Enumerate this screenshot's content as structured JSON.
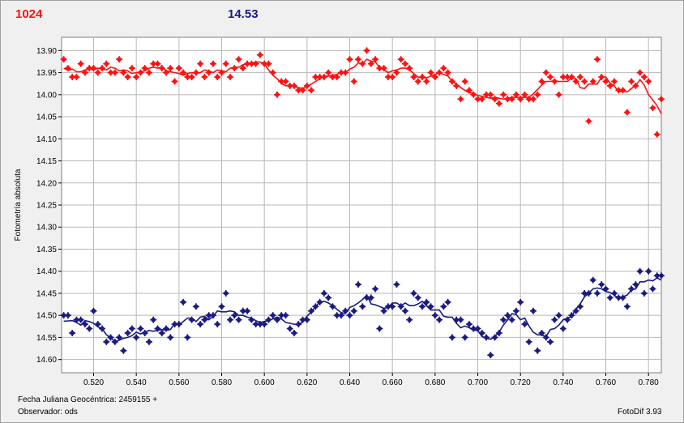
{
  "header": {
    "left_value": "1024",
    "right_value": "14.53"
  },
  "footer": {
    "jd_label": "Fecha Juliana Geocéntrica: 2459155 +",
    "observer_label": "Observador: ods",
    "app_label": "FotoDif 3.93"
  },
  "colors": {
    "series_red": "#ff1010",
    "series_blue": "#1a1a80",
    "plot_bg": "#ffffff",
    "grid": "#b8b8b8"
  },
  "chart_data": {
    "type": "scatter",
    "ylabel": "Fotometría absoluta",
    "xlim": [
      0.505,
      0.786
    ],
    "ylim": [
      13.87,
      14.63
    ],
    "y_inverted": true,
    "grid": true,
    "x_ticks": [
      "0.520",
      "0.540",
      "0.560",
      "0.580",
      "0.600",
      "0.620",
      "0.640",
      "0.660",
      "0.680",
      "0.700",
      "0.720",
      "0.740",
      "0.760",
      "0.780"
    ],
    "y_ticks": [
      "13.90",
      "13.95",
      "14.00",
      "14.05",
      "14.10",
      "14.15",
      "14.20",
      "14.25",
      "14.30",
      "14.35",
      "14.40",
      "14.45",
      "14.50",
      "14.55",
      "14.60"
    ],
    "series": [
      {
        "color": "#ff1010",
        "points": [
          [
            0.506,
            13.92
          ],
          [
            0.508,
            13.94
          ],
          [
            0.51,
            13.96
          ],
          [
            0.512,
            13.96
          ],
          [
            0.514,
            13.93
          ],
          [
            0.516,
            13.95
          ],
          [
            0.518,
            13.94
          ],
          [
            0.52,
            13.94
          ],
          [
            0.522,
            13.95
          ],
          [
            0.524,
            13.94
          ],
          [
            0.526,
            13.93
          ],
          [
            0.528,
            13.95
          ],
          [
            0.53,
            13.95
          ],
          [
            0.532,
            13.92
          ],
          [
            0.534,
            13.95
          ],
          [
            0.536,
            13.96
          ],
          [
            0.538,
            13.94
          ],
          [
            0.54,
            13.96
          ],
          [
            0.542,
            13.95
          ],
          [
            0.544,
            13.94
          ],
          [
            0.546,
            13.95
          ],
          [
            0.548,
            13.93
          ],
          [
            0.55,
            13.93
          ],
          [
            0.552,
            13.94
          ],
          [
            0.554,
            13.95
          ],
          [
            0.556,
            13.94
          ],
          [
            0.558,
            13.97
          ],
          [
            0.56,
            13.94
          ],
          [
            0.562,
            13.95
          ],
          [
            0.564,
            13.96
          ],
          [
            0.566,
            13.96
          ],
          [
            0.568,
            13.95
          ],
          [
            0.57,
            13.93
          ],
          [
            0.572,
            13.96
          ],
          [
            0.574,
            13.95
          ],
          [
            0.576,
            13.93
          ],
          [
            0.578,
            13.96
          ],
          [
            0.58,
            13.95
          ],
          [
            0.582,
            13.93
          ],
          [
            0.584,
            13.96
          ],
          [
            0.586,
            13.94
          ],
          [
            0.588,
            13.92
          ],
          [
            0.59,
            13.94
          ],
          [
            0.592,
            13.93
          ],
          [
            0.594,
            13.93
          ],
          [
            0.596,
            13.93
          ],
          [
            0.598,
            13.91
          ],
          [
            0.6,
            13.93
          ],
          [
            0.602,
            13.93
          ],
          [
            0.604,
            13.95
          ],
          [
            0.606,
            14.0
          ],
          [
            0.608,
            13.97
          ],
          [
            0.61,
            13.97
          ],
          [
            0.612,
            13.98
          ],
          [
            0.614,
            13.98
          ],
          [
            0.616,
            13.99
          ],
          [
            0.618,
            13.99
          ],
          [
            0.62,
            13.98
          ],
          [
            0.622,
            13.99
          ],
          [
            0.624,
            13.96
          ],
          [
            0.626,
            13.96
          ],
          [
            0.628,
            13.96
          ],
          [
            0.63,
            13.95
          ],
          [
            0.632,
            13.96
          ],
          [
            0.634,
            13.96
          ],
          [
            0.636,
            13.95
          ],
          [
            0.638,
            13.95
          ],
          [
            0.64,
            13.92
          ],
          [
            0.642,
            13.97
          ],
          [
            0.644,
            13.92
          ],
          [
            0.646,
            13.93
          ],
          [
            0.648,
            13.9
          ],
          [
            0.65,
            13.93
          ],
          [
            0.652,
            13.92
          ],
          [
            0.654,
            13.94
          ],
          [
            0.656,
            13.94
          ],
          [
            0.658,
            13.96
          ],
          [
            0.66,
            13.96
          ],
          [
            0.662,
            13.95
          ],
          [
            0.664,
            13.92
          ],
          [
            0.666,
            13.93
          ],
          [
            0.668,
            13.94
          ],
          [
            0.67,
            13.96
          ],
          [
            0.672,
            13.97
          ],
          [
            0.674,
            13.96
          ],
          [
            0.676,
            13.97
          ],
          [
            0.678,
            13.95
          ],
          [
            0.68,
            13.96
          ],
          [
            0.682,
            13.95
          ],
          [
            0.684,
            13.94
          ],
          [
            0.686,
            13.95
          ],
          [
            0.688,
            13.97
          ],
          [
            0.69,
            13.98
          ],
          [
            0.692,
            14.01
          ],
          [
            0.694,
            13.97
          ],
          [
            0.696,
            13.99
          ],
          [
            0.698,
            14.0
          ],
          [
            0.7,
            14.01
          ],
          [
            0.702,
            14.01
          ],
          [
            0.704,
            14.0
          ],
          [
            0.706,
            14.0
          ],
          [
            0.708,
            14.01
          ],
          [
            0.71,
            14.02
          ],
          [
            0.712,
            14.0
          ],
          [
            0.714,
            14.01
          ],
          [
            0.716,
            14.01
          ],
          [
            0.718,
            14.0
          ],
          [
            0.72,
            14.01
          ],
          [
            0.722,
            14.0
          ],
          [
            0.724,
            14.01
          ],
          [
            0.726,
            14.01
          ],
          [
            0.728,
            14.0
          ],
          [
            0.73,
            13.97
          ],
          [
            0.732,
            13.95
          ],
          [
            0.734,
            13.96
          ],
          [
            0.736,
            13.97
          ],
          [
            0.738,
            14.0
          ],
          [
            0.74,
            13.96
          ],
          [
            0.742,
            13.96
          ],
          [
            0.744,
            13.96
          ],
          [
            0.746,
            13.97
          ],
          [
            0.748,
            13.96
          ],
          [
            0.75,
            13.97
          ],
          [
            0.752,
            14.06
          ],
          [
            0.754,
            13.97
          ],
          [
            0.756,
            13.92
          ],
          [
            0.758,
            13.96
          ],
          [
            0.76,
            13.97
          ],
          [
            0.762,
            13.98
          ],
          [
            0.764,
            13.97
          ],
          [
            0.766,
            13.99
          ],
          [
            0.768,
            13.99
          ],
          [
            0.77,
            14.04
          ],
          [
            0.772,
            13.97
          ],
          [
            0.774,
            13.98
          ],
          [
            0.776,
            13.95
          ],
          [
            0.778,
            13.96
          ],
          [
            0.78,
            13.97
          ],
          [
            0.782,
            14.03
          ],
          [
            0.784,
            14.09
          ],
          [
            0.786,
            14.01
          ]
        ]
      },
      {
        "color": "#1a1a80",
        "points": [
          [
            0.506,
            14.5
          ],
          [
            0.508,
            14.5
          ],
          [
            0.51,
            14.54
          ],
          [
            0.512,
            14.51
          ],
          [
            0.514,
            14.51
          ],
          [
            0.516,
            14.52
          ],
          [
            0.518,
            14.53
          ],
          [
            0.52,
            14.49
          ],
          [
            0.522,
            14.52
          ],
          [
            0.524,
            14.53
          ],
          [
            0.526,
            14.56
          ],
          [
            0.528,
            14.55
          ],
          [
            0.53,
            14.56
          ],
          [
            0.532,
            14.55
          ],
          [
            0.534,
            14.58
          ],
          [
            0.536,
            14.54
          ],
          [
            0.538,
            14.53
          ],
          [
            0.54,
            14.55
          ],
          [
            0.542,
            14.53
          ],
          [
            0.544,
            14.54
          ],
          [
            0.546,
            14.56
          ],
          [
            0.548,
            14.51
          ],
          [
            0.55,
            14.53
          ],
          [
            0.552,
            14.54
          ],
          [
            0.554,
            14.53
          ],
          [
            0.556,
            14.55
          ],
          [
            0.558,
            14.52
          ],
          [
            0.56,
            14.52
          ],
          [
            0.562,
            14.47
          ],
          [
            0.564,
            14.55
          ],
          [
            0.566,
            14.51
          ],
          [
            0.568,
            14.48
          ],
          [
            0.57,
            14.52
          ],
          [
            0.572,
            14.51
          ],
          [
            0.574,
            14.5
          ],
          [
            0.576,
            14.5
          ],
          [
            0.578,
            14.52
          ],
          [
            0.58,
            14.48
          ],
          [
            0.582,
            14.45
          ],
          [
            0.584,
            14.51
          ],
          [
            0.586,
            14.5
          ],
          [
            0.588,
            14.51
          ],
          [
            0.59,
            14.49
          ],
          [
            0.592,
            14.49
          ],
          [
            0.594,
            14.51
          ],
          [
            0.596,
            14.52
          ],
          [
            0.598,
            14.52
          ],
          [
            0.6,
            14.52
          ],
          [
            0.602,
            14.51
          ],
          [
            0.604,
            14.5
          ],
          [
            0.606,
            14.51
          ],
          [
            0.608,
            14.5
          ],
          [
            0.61,
            14.5
          ],
          [
            0.612,
            14.53
          ],
          [
            0.614,
            14.54
          ],
          [
            0.616,
            14.52
          ],
          [
            0.618,
            14.51
          ],
          [
            0.62,
            14.51
          ],
          [
            0.622,
            14.49
          ],
          [
            0.624,
            14.48
          ],
          [
            0.626,
            14.47
          ],
          [
            0.628,
            14.45
          ],
          [
            0.63,
            14.46
          ],
          [
            0.632,
            14.48
          ],
          [
            0.634,
            14.5
          ],
          [
            0.636,
            14.5
          ],
          [
            0.638,
            14.49
          ],
          [
            0.64,
            14.5
          ],
          [
            0.642,
            14.49
          ],
          [
            0.644,
            14.43
          ],
          [
            0.646,
            14.48
          ],
          [
            0.648,
            14.46
          ],
          [
            0.65,
            14.46
          ],
          [
            0.652,
            14.44
          ],
          [
            0.654,
            14.53
          ],
          [
            0.656,
            14.49
          ],
          [
            0.658,
            14.48
          ],
          [
            0.66,
            14.48
          ],
          [
            0.662,
            14.43
          ],
          [
            0.664,
            14.48
          ],
          [
            0.666,
            14.49
          ],
          [
            0.668,
            14.51
          ],
          [
            0.67,
            14.45
          ],
          [
            0.672,
            14.46
          ],
          [
            0.674,
            14.48
          ],
          [
            0.676,
            14.47
          ],
          [
            0.678,
            14.48
          ],
          [
            0.68,
            14.5
          ],
          [
            0.682,
            14.51
          ],
          [
            0.684,
            14.48
          ],
          [
            0.686,
            14.47
          ],
          [
            0.688,
            14.55
          ],
          [
            0.69,
            14.51
          ],
          [
            0.692,
            14.51
          ],
          [
            0.694,
            14.55
          ],
          [
            0.696,
            14.52
          ],
          [
            0.698,
            14.53
          ],
          [
            0.7,
            14.53
          ],
          [
            0.702,
            14.54
          ],
          [
            0.704,
            14.55
          ],
          [
            0.706,
            14.59
          ],
          [
            0.708,
            14.55
          ],
          [
            0.71,
            14.54
          ],
          [
            0.712,
            14.51
          ],
          [
            0.714,
            14.5
          ],
          [
            0.716,
            14.51
          ],
          [
            0.718,
            14.49
          ],
          [
            0.72,
            14.47
          ],
          [
            0.722,
            14.52
          ],
          [
            0.724,
            14.56
          ],
          [
            0.726,
            14.49
          ],
          [
            0.728,
            14.58
          ],
          [
            0.73,
            14.54
          ],
          [
            0.732,
            14.55
          ],
          [
            0.734,
            14.56
          ],
          [
            0.736,
            14.51
          ],
          [
            0.738,
            14.5
          ],
          [
            0.74,
            14.53
          ],
          [
            0.742,
            14.51
          ],
          [
            0.744,
            14.5
          ],
          [
            0.746,
            14.49
          ],
          [
            0.748,
            14.48
          ],
          [
            0.75,
            14.45
          ],
          [
            0.752,
            14.45
          ],
          [
            0.754,
            14.42
          ],
          [
            0.756,
            14.45
          ],
          [
            0.758,
            14.43
          ],
          [
            0.76,
            14.44
          ],
          [
            0.762,
            14.46
          ],
          [
            0.764,
            14.45
          ],
          [
            0.766,
            14.46
          ],
          [
            0.768,
            14.46
          ],
          [
            0.77,
            14.48
          ],
          [
            0.772,
            14.44
          ],
          [
            0.774,
            14.43
          ],
          [
            0.776,
            14.4
          ],
          [
            0.778,
            14.45
          ],
          [
            0.78,
            14.4
          ],
          [
            0.782,
            14.44
          ],
          [
            0.784,
            14.41
          ],
          [
            0.786,
            14.41
          ]
        ]
      }
    ]
  }
}
